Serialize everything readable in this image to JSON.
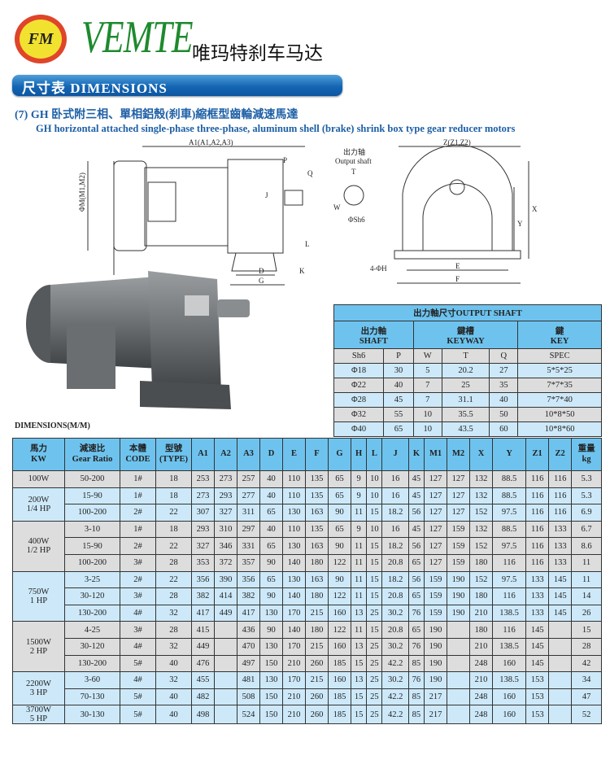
{
  "header": {
    "logo_text": "FM",
    "brand": "VEMTE",
    "brand_cn": "唯玛特刹车马达"
  },
  "banner": "尺寸表 DIMENSIONS",
  "subtitle_cn": "(7) GH 卧式附三相、單相鋁殼(刹車)縮框型齒輪減速馬達",
  "subtitle_en": "GH horizontal attached single-phase three-phase, aluminum shell (brake) shrink box type gear reducer motors",
  "drawing_labels": {
    "a1": "A1(A1,A2,A3)",
    "p": "P",
    "q": "Q",
    "m": "ΦM(M1,M2)",
    "j": "J",
    "l": "L",
    "d": "D",
    "g": "G",
    "k": "K",
    "shaft_cn": "出力轴",
    "shaft_en": "Output shaft",
    "t": "T",
    "w": "W",
    "sh6": "ΦSh6",
    "z": "Z(Z1,Z2)",
    "x": "X",
    "y": "Y",
    "h": "4-ΦH",
    "e": "E",
    "f": "F"
  },
  "shaft_table": {
    "title": "出力軸尺寸OUTPUT SHAFT",
    "groups": [
      {
        "cn": "出力軸",
        "en": "SHAFT"
      },
      {
        "cn": "鍵槽",
        "en": "KEYWAY"
      },
      {
        "cn": "鍵",
        "en": "KEY"
      }
    ],
    "columns": [
      "Sh6",
      "P",
      "W",
      "T",
      "Q",
      "SPEC"
    ],
    "rows": [
      [
        "Φ18",
        "30",
        "5",
        "20.2",
        "27",
        "5*5*25"
      ],
      [
        "Φ22",
        "40",
        "7",
        "25",
        "35",
        "7*7*35"
      ],
      [
        "Φ28",
        "45",
        "7",
        "31.1",
        "40",
        "7*7*40"
      ],
      [
        "Φ32",
        "55",
        "10",
        "35.5",
        "50",
        "10*8*50"
      ],
      [
        "Φ40",
        "65",
        "10",
        "43.5",
        "60",
        "10*8*60"
      ]
    ]
  },
  "dim_caption": "DIMENSIONS(M/M)",
  "main_table": {
    "headers": [
      [
        "馬力",
        "KW"
      ],
      [
        "減速比",
        "Gear Ratio"
      ],
      [
        "本體",
        "CODE"
      ],
      [
        "型號",
        "(TYPE)"
      ],
      [
        "A1"
      ],
      [
        "A2"
      ],
      [
        "A3"
      ],
      [
        "D"
      ],
      [
        "E"
      ],
      [
        "F"
      ],
      [
        "G"
      ],
      [
        "H"
      ],
      [
        "L"
      ],
      [
        "J"
      ],
      [
        "K"
      ],
      [
        "M1"
      ],
      [
        "M2"
      ],
      [
        "X"
      ],
      [
        "Y"
      ],
      [
        "Z1"
      ],
      [
        "Z2"
      ],
      [
        "重量",
        "kg"
      ]
    ],
    "groups": [
      {
        "power": [
          "100W"
        ],
        "shade": "gray",
        "rows": [
          [
            "50-200",
            "1#",
            "18",
            "253",
            "273",
            "257",
            "40",
            "110",
            "135",
            "65",
            "9",
            "10",
            "16",
            "45",
            "127",
            "127",
            "132",
            "88.5",
            "116",
            "116",
            "5.3"
          ]
        ]
      },
      {
        "power": [
          "200W",
          "1/4 HP"
        ],
        "shade": "blue",
        "rows": [
          [
            "15-90",
            "1#",
            "18",
            "273",
            "293",
            "277",
            "40",
            "110",
            "135",
            "65",
            "9",
            "10",
            "16",
            "45",
            "127",
            "127",
            "132",
            "88.5",
            "116",
            "116",
            "5.3"
          ],
          [
            "100-200",
            "2#",
            "22",
            "307",
            "327",
            "311",
            "65",
            "130",
            "163",
            "90",
            "11",
            "15",
            "18.2",
            "56",
            "127",
            "127",
            "152",
            "97.5",
            "116",
            "116",
            "6.9"
          ]
        ]
      },
      {
        "power": [
          "400W",
          "1/2 HP"
        ],
        "shade": "gray",
        "rows": [
          [
            "3-10",
            "1#",
            "18",
            "293",
            "310",
            "297",
            "40",
            "110",
            "135",
            "65",
            "9",
            "10",
            "16",
            "45",
            "127",
            "159",
            "132",
            "88.5",
            "116",
            "133",
            "6.7"
          ],
          [
            "15-90",
            "2#",
            "22",
            "327",
            "346",
            "331",
            "65",
            "130",
            "163",
            "90",
            "11",
            "15",
            "18.2",
            "56",
            "127",
            "159",
            "152",
            "97.5",
            "116",
            "133",
            "8.6"
          ],
          [
            "100-200",
            "3#",
            "28",
            "353",
            "372",
            "357",
            "90",
            "140",
            "180",
            "122",
            "11",
            "15",
            "20.8",
            "65",
            "127",
            "159",
            "180",
            "116",
            "116",
            "133",
            "11"
          ]
        ]
      },
      {
        "power": [
          "750W",
          "1 HP"
        ],
        "shade": "blue",
        "rows": [
          [
            "3-25",
            "2#",
            "22",
            "356",
            "390",
            "356",
            "65",
            "130",
            "163",
            "90",
            "11",
            "15",
            "18.2",
            "56",
            "159",
            "190",
            "152",
            "97.5",
            "133",
            "145",
            "11"
          ],
          [
            "30-120",
            "3#",
            "28",
            "382",
            "414",
            "382",
            "90",
            "140",
            "180",
            "122",
            "11",
            "15",
            "20.8",
            "65",
            "159",
            "190",
            "180",
            "116",
            "133",
            "145",
            "14"
          ],
          [
            "130-200",
            "4#",
            "32",
            "417",
            "449",
            "417",
            "130",
            "170",
            "215",
            "160",
            "13",
            "25",
            "30.2",
            "76",
            "159",
            "190",
            "210",
            "138.5",
            "133",
            "145",
            "26"
          ]
        ]
      },
      {
        "power": [
          "1500W",
          "2 HP"
        ],
        "shade": "gray",
        "rows": [
          [
            "4-25",
            "3#",
            "28",
            "415",
            "",
            "436",
            "90",
            "140",
            "180",
            "122",
            "11",
            "15",
            "20.8",
            "65",
            "190",
            "",
            "180",
            "116",
            "145",
            "",
            "15"
          ],
          [
            "30-120",
            "4#",
            "32",
            "449",
            "",
            "470",
            "130",
            "170",
            "215",
            "160",
            "13",
            "25",
            "30.2",
            "76",
            "190",
            "",
            "210",
            "138.5",
            "145",
            "",
            "28"
          ],
          [
            "130-200",
            "5#",
            "40",
            "476",
            "",
            "497",
            "150",
            "210",
            "260",
            "185",
            "15",
            "25",
            "42.2",
            "85",
            "190",
            "",
            "248",
            "160",
            "145",
            "",
            "42"
          ]
        ]
      },
      {
        "power": [
          "2200W",
          "3 HP"
        ],
        "shade": "blue",
        "rows": [
          [
            "3-60",
            "4#",
            "32",
            "455",
            "",
            "481",
            "130",
            "170",
            "215",
            "160",
            "13",
            "25",
            "30.2",
            "76",
            "190",
            "",
            "210",
            "138.5",
            "153",
            "",
            "34"
          ],
          [
            "70-130",
            "5#",
            "40",
            "482",
            "",
            "508",
            "150",
            "210",
            "260",
            "185",
            "15",
            "25",
            "42.2",
            "85",
            "217",
            "",
            "248",
            "160",
            "153",
            "",
            "47"
          ]
        ]
      },
      {
        "power": [
          "3700W",
          "5 HP"
        ],
        "shade": "blue",
        "rows": [
          [
            "30-130",
            "5#",
            "40",
            "498",
            "",
            "524",
            "150",
            "210",
            "260",
            "185",
            "15",
            "25",
            "42.2",
            "85",
            "217",
            "",
            "248",
            "160",
            "153",
            "",
            "52"
          ]
        ]
      }
    ]
  }
}
